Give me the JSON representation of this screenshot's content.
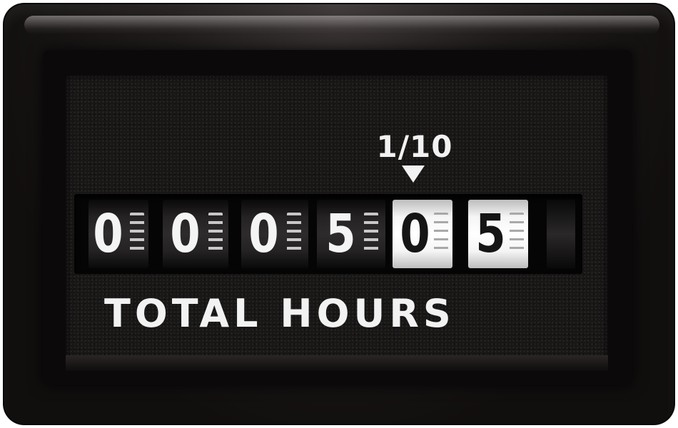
{
  "meter": {
    "resolution_label": "1/10",
    "digits": [
      "0",
      "0",
      "0",
      "5",
      "0",
      "5"
    ],
    "unit_label": "TOTAL HOURS",
    "housing_color": "#141111",
    "face_color": "#191616",
    "marking_color": "#f2f2f2",
    "tenths_wheel_color": "#ffffff"
  }
}
